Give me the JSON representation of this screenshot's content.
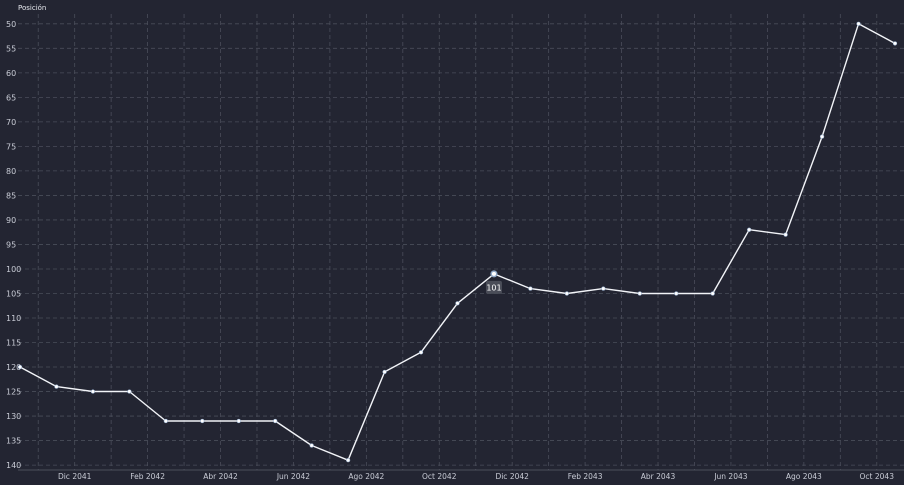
{
  "chart_data": {
    "type": "line",
    "ylabel": "Posición",
    "y_inverted": true,
    "ylim": [
      48,
      141
    ],
    "yticks": [
      50,
      55,
      60,
      65,
      70,
      75,
      80,
      85,
      90,
      95,
      100,
      105,
      110,
      115,
      120,
      125,
      130,
      135,
      140
    ],
    "xtick_labels": [
      "Dic 2041",
      "Feb 2042",
      "Abr 2042",
      "Jun 2042",
      "Ago 2042",
      "Oct 2042",
      "Dic 2042",
      "Feb 2043",
      "Abr 2043",
      "Jun 2043",
      "Ago 2043",
      "Oct 2043"
    ],
    "x": [
      "Nov 2041",
      "Dic 2041",
      "Ene 2042",
      "Feb 2042",
      "Mar 2042",
      "Abr 2042",
      "May 2042",
      "Jun 2042",
      "Jul 2042",
      "Ago 2042",
      "Sep 2042",
      "Oct 2042",
      "Nov 2042",
      "Dic 2042",
      "Ene 2043",
      "Feb 2043",
      "Mar 2043",
      "Abr 2043",
      "May 2043",
      "Jun 2043",
      "Jul 2043",
      "Ago 2043",
      "Sep 2043",
      "Oct 2043",
      "Nov 2043"
    ],
    "values": [
      120,
      124,
      125,
      125,
      131,
      131,
      131,
      131,
      136,
      139,
      121,
      117,
      107,
      101,
      104,
      105,
      104,
      105,
      105,
      105,
      92,
      93,
      73,
      50,
      54
    ],
    "highlight": {
      "index": 13,
      "label": "101"
    },
    "grid": true,
    "legend": "none",
    "colors": {
      "background": "#232532",
      "line": "#f2f4f8",
      "grid": "#4a4d5a"
    }
  }
}
